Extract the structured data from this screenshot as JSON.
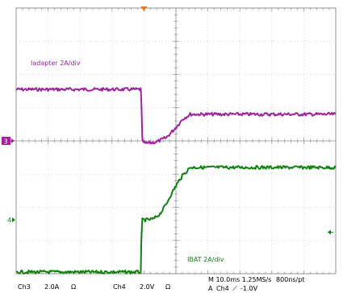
{
  "colors": {
    "ch3": "#a020a0",
    "ch4": "#108010",
    "grid": "#c8c8c8",
    "axis": "#909090",
    "trigger_marker": "#e07818",
    "ch4_right_marker": "#108010"
  },
  "chart_data": {
    "type": "line",
    "xlabel": "",
    "ylabel": "",
    "grid": true,
    "divisions": {
      "x": 10,
      "y": 8
    },
    "x_unit": "div",
    "y_unit": "div",
    "xlim": [
      0,
      10
    ],
    "ylim": [
      0,
      8
    ],
    "series": [
      {
        "key": "ch3",
        "name": "Iadapter 2A/div",
        "annotation": "Iadapter 2A/div",
        "marker_label": "3",
        "x": [
          0,
          3.9,
          3.92,
          3.95,
          4.05,
          4.4,
          4.7,
          5.0,
          5.2,
          5.45,
          6.0,
          7.0,
          8.0,
          9.0,
          10.0
        ],
        "y": [
          5.55,
          5.55,
          5.1,
          4.0,
          3.92,
          3.97,
          4.1,
          4.4,
          4.65,
          4.8,
          4.8,
          4.8,
          4.8,
          4.8,
          4.8
        ]
      },
      {
        "key": "ch4",
        "name": "IBAT 2A/div",
        "annotation": "IBAT 2A/div",
        "marker_label": "4",
        "x": [
          0,
          3.9,
          3.92,
          3.95,
          4.1,
          4.3,
          4.5,
          4.7,
          4.8,
          5.0,
          5.2,
          5.45,
          6.0,
          7.0,
          8.0,
          9.0,
          10.0
        ],
        "y": [
          0.05,
          0.05,
          1.0,
          1.62,
          1.62,
          1.65,
          1.8,
          2.1,
          2.3,
          2.65,
          2.95,
          3.2,
          3.2,
          3.2,
          3.2,
          3.2,
          3.2
        ]
      }
    ]
  },
  "status_bar": {
    "ch3_name": "Ch3",
    "ch3_scale": "2.0A",
    "ch3_coupling": "Ω",
    "ch4_name": "Ch4",
    "ch4_scale": "2.0V",
    "ch4_coupling": "Ω",
    "timebase": "M 10.0ms 1.25MS/s",
    "record": "800ns/pt",
    "trigger_prefix": "A",
    "trigger_source": "Ch4",
    "trigger_slope": "⟋",
    "trigger_level": "-1.0V"
  }
}
